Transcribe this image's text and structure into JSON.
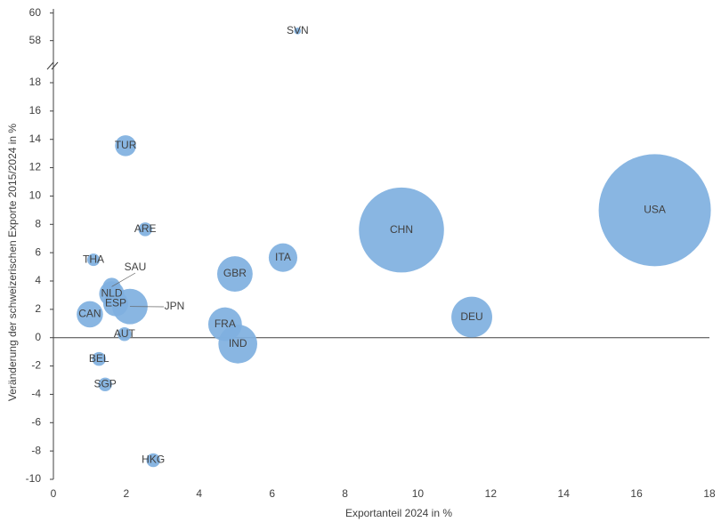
{
  "chart_data": {
    "type": "bubble",
    "x_label": "Exportanteil 2024 in %",
    "y_label": "Veränderung der schweizerischen Exporte 2015/2024 in %",
    "categories": [
      "USA",
      "CHN",
      "DEU",
      "ITA",
      "GBR",
      "FRA",
      "IND",
      "JPN",
      "ESP",
      "NLD",
      "SAU",
      "CAN",
      "TUR",
      "ARE",
      "THA",
      "AUT",
      "BEL",
      "SGP",
      "HKG",
      "SVN"
    ],
    "x": [
      16.5,
      9.55,
      11.48,
      6.3,
      4.98,
      4.71,
      5.06,
      2.1,
      1.71,
      1.6,
      1.6,
      1.0,
      1.98,
      2.52,
      1.1,
      1.95,
      1.25,
      1.42,
      2.74,
      6.7
    ],
    "y": [
      9.0,
      7.6,
      1.45,
      5.65,
      4.5,
      0.95,
      -0.45,
      2.2,
      2.4,
      3.1,
      3.6,
      1.65,
      13.55,
      7.65,
      5.5,
      0.25,
      -1.5,
      -3.3,
      -8.65,
      58.7
    ],
    "sizes": [
      40,
      23,
      5.3,
      2.6,
      4,
      3.6,
      4.8,
      4,
      2,
      2,
      1,
      2.2,
      1.4,
      0.6,
      0.5,
      0.6,
      0.6,
      0.6,
      0.6,
      0.15
    ],
    "color": "#7fb0e0",
    "xlim": [
      0,
      18
    ],
    "xticks": [
      0,
      2,
      4,
      6,
      8,
      10,
      12,
      14,
      16,
      18
    ],
    "ylim": [
      -10,
      18
    ],
    "yticks": [
      -10,
      -8,
      -6,
      -4,
      -2,
      0,
      2,
      4,
      6,
      8,
      10,
      12,
      14,
      16,
      18
    ],
    "y_break": {
      "ylim": [
        57.4,
        60.3
      ],
      "yticks": [
        58,
        60
      ]
    }
  }
}
